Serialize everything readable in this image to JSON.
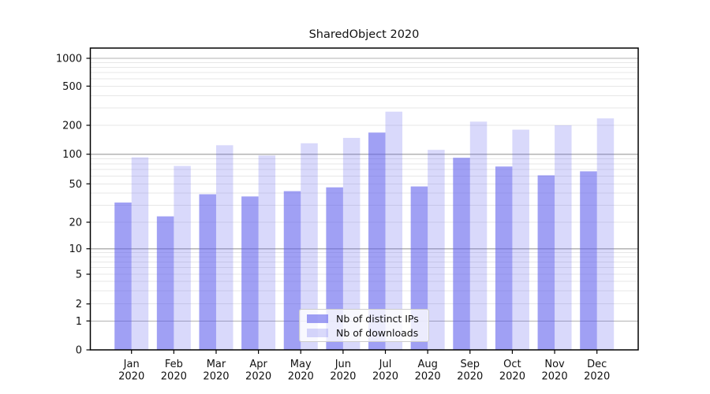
{
  "title": "SharedObject 2020",
  "chart_data": {
    "type": "bar",
    "title": "SharedObject 2020",
    "x_tick_labels": [
      "Jan 2020",
      "Feb 2020",
      "Mar 2020",
      "Apr 2020",
      "May 2020",
      "Jun 2020",
      "Jul 2020",
      "Aug 2020",
      "Sep 2020",
      "Oct 2020",
      "Nov 2020",
      "Dec 2020"
    ],
    "series": [
      {
        "name": "Nb of distinct IPs",
        "color": "#5c5cec",
        "alpha": 0.58,
        "values": [
          32,
          23,
          39,
          37,
          42,
          46,
          168,
          47,
          92,
          75,
          61,
          67
        ]
      },
      {
        "name": "Nb of downloads",
        "color": "#5c5cec",
        "alpha": 0.23,
        "values": [
          93,
          76,
          124,
          97,
          130,
          148,
          275,
          111,
          218,
          180,
          200,
          235
        ]
      }
    ],
    "y_axis": {
      "scale": "symlog",
      "tick_values": [
        0,
        1,
        2,
        5,
        10,
        20,
        50,
        100,
        200,
        500,
        1000
      ],
      "tick_labels": [
        "0",
        "1",
        "2",
        "5",
        "10",
        "20",
        "50",
        "100",
        "200",
        "500",
        "1000"
      ],
      "range_top": 1300
    },
    "grid": {
      "horizontal_major": true,
      "horizontal_minor": true
    },
    "legend_position": "lower center"
  },
  "colors": {
    "axis": "#000000",
    "major_grid": "#b3b3b3",
    "minor_grid": "#e7e7e7",
    "tick_label": "#111111",
    "legend_border": "#cccccc"
  }
}
